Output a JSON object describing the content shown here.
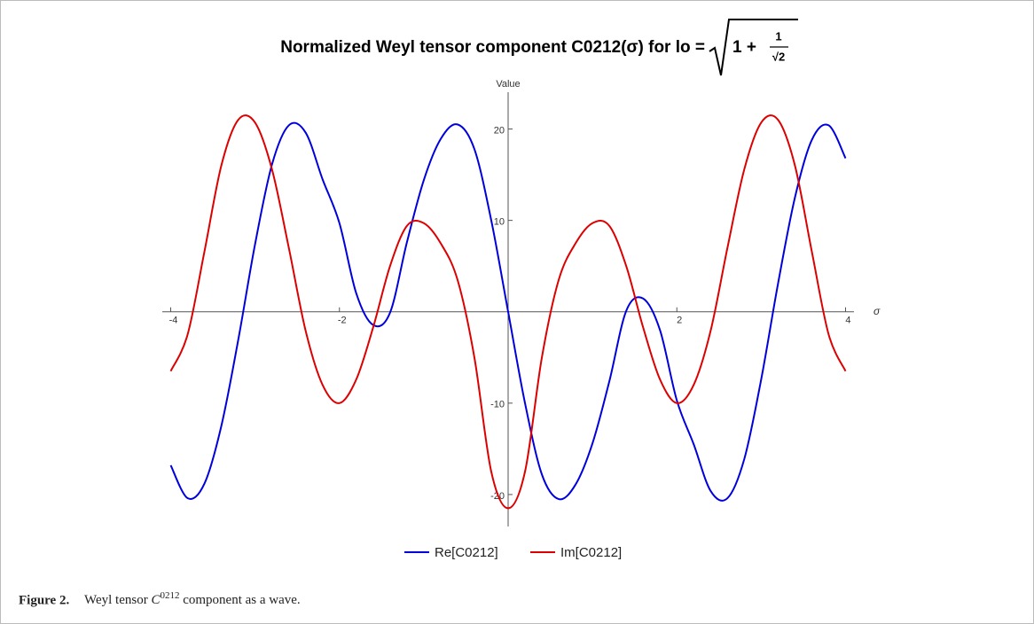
{
  "chart_data": {
    "type": "line",
    "title": "Normalized Weyl tensor component C0212(σ) for lo =",
    "title_formula": {
      "term": "1 +",
      "numerator": "1",
      "denominator": "√2"
    },
    "xlabel": "σ",
    "ylabel": "Value",
    "x": [
      -4,
      -3.8,
      -3.6,
      -3.4,
      -3.2,
      -3,
      -2.8,
      -2.6,
      -2.4,
      -2.2,
      -2,
      -1.8,
      -1.6,
      -1.4,
      -1.2,
      -1,
      -0.8,
      -0.6,
      -0.4,
      -0.2,
      0,
      0.2,
      0.4,
      0.6,
      0.8,
      1,
      1.2,
      1.4,
      1.6,
      1.8,
      2,
      2.2,
      2.4,
      2.6,
      2.8,
      3,
      3.2,
      3.4,
      3.6,
      3.8,
      4
    ],
    "series": [
      {
        "name": "Re[C0212]",
        "color": "#0000dd",
        "values": [
          -16.8,
          -20.4,
          -18.8,
          -12.5,
          -3.1,
          7.4,
          16.1,
          20.4,
          19.6,
          14.5,
          9.7,
          2,
          -1.45,
          -0.1,
          7.6,
          14.4,
          18.9,
          20.5,
          17.8,
          10,
          0,
          -10,
          -17.8,
          -20.5,
          -18.9,
          -14.4,
          -7.6,
          0.1,
          1.45,
          -2,
          -9.7,
          -14.5,
          -19.6,
          -20.4,
          -16.1,
          -7.4,
          3.1,
          12.5,
          18.8,
          20.4,
          16.8
        ]
      },
      {
        "name": "Im[C0212]",
        "color": "#dd0000",
        "values": [
          -6.5,
          -2.5,
          6.6,
          16,
          21,
          20.7,
          15.6,
          7,
          -2.1,
          -8,
          -10,
          -7.4,
          -1.7,
          5,
          9.4,
          9.7,
          7.5,
          3.5,
          -5,
          -17.5,
          -21.5,
          -17.5,
          -5,
          3.5,
          7.5,
          9.7,
          9.4,
          5,
          -1.7,
          -7.4,
          -10,
          -8,
          -2.1,
          7,
          15.6,
          20.7,
          21,
          16,
          6.6,
          -2.5,
          -6.5
        ]
      }
    ],
    "xlim": [
      -4.1,
      4.1
    ],
    "ylim": [
      -23.5,
      25
    ],
    "xticks": [
      -4,
      -2,
      2,
      4
    ],
    "yticks": [
      -20,
      -10,
      10,
      20
    ],
    "legend": "bottom"
  },
  "caption": {
    "label": "Figure 2.",
    "text_before": "Weyl tensor",
    "symbol": "C",
    "superscript": "0212",
    "text_after": "component as a wave."
  }
}
